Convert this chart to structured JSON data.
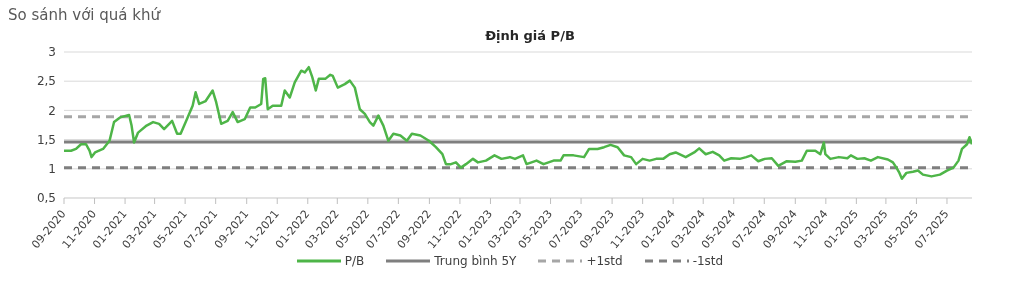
{
  "chart_data": {
    "type": "line",
    "subtitle": "So sánh với quá khứ",
    "title": "Định giá P/B",
    "series": [
      {
        "name": "P/B",
        "color": "#4eb548",
        "x": [
          "2020-09-01",
          "2020-09-15",
          "2020-09-25",
          "2020-10-05",
          "2020-10-15",
          "2020-10-22",
          "2020-10-26",
          "2020-11-02",
          "2020-11-18",
          "2020-12-01",
          "2020-12-10",
          "2020-12-22",
          "2021-01-09",
          "2021-01-14",
          "2021-01-19",
          "2021-01-27",
          "2021-02-13",
          "2021-02-26",
          "2021-03-10",
          "2021-03-20",
          "2021-04-05",
          "2021-04-15",
          "2021-04-22",
          "2021-05-06",
          "2021-05-16",
          "2021-05-22",
          "2021-05-29",
          "2021-06-11",
          "2021-06-25",
          "2021-07-02",
          "2021-07-12",
          "2021-07-25",
          "2021-08-04",
          "2021-08-14",
          "2021-08-28",
          "2021-09-08",
          "2021-09-18",
          "2021-09-30",
          "2021-10-04",
          "2021-10-08",
          "2021-10-13",
          "2021-10-23",
          "2021-11-09",
          "2021-11-16",
          "2021-11-26",
          "2021-12-06",
          "2021-12-19",
          "2021-12-26",
          "2022-01-03",
          "2022-01-10",
          "2022-01-17",
          "2022-01-23",
          "2022-02-05",
          "2022-02-15",
          "2022-02-20",
          "2022-03-02",
          "2022-03-16",
          "2022-03-26",
          "2022-04-05",
          "2022-04-15",
          "2022-04-25",
          "2022-05-05",
          "2022-05-12",
          "2022-05-22",
          "2022-06-01",
          "2022-06-11",
          "2022-06-21",
          "2022-07-05",
          "2022-07-18",
          "2022-07-28",
          "2022-08-14",
          "2022-08-31",
          "2022-09-14",
          "2022-09-27",
          "2022-10-04",
          "2022-10-14",
          "2022-10-24",
          "2022-11-03",
          "2022-11-13",
          "2022-11-27",
          "2022-12-07",
          "2022-12-23",
          "2023-01-09",
          "2023-01-23",
          "2023-02-09",
          "2023-02-19",
          "2023-03-07",
          "2023-03-14",
          "2023-04-03",
          "2023-04-17",
          "2023-05-07",
          "2023-05-21",
          "2023-05-27",
          "2023-06-16",
          "2023-07-07",
          "2023-07-17",
          "2023-08-03",
          "2023-08-16",
          "2023-08-29",
          "2023-09-12",
          "2023-09-25",
          "2023-10-09",
          "2023-10-19",
          "2023-11-01",
          "2023-11-15",
          "2023-11-28",
          "2023-12-12",
          "2023-12-25",
          "2024-01-06",
          "2024-01-26",
          "2024-02-12",
          "2024-02-22",
          "2024-03-06",
          "2024-03-20",
          "2024-04-02",
          "2024-04-12",
          "2024-04-26",
          "2024-05-13",
          "2024-05-26",
          "2024-06-05",
          "2024-06-19",
          "2024-07-02",
          "2024-07-16",
          "2024-07-29",
          "2024-08-15",
          "2024-09-01",
          "2024-09-14",
          "2024-09-24",
          "2024-10-11",
          "2024-10-21",
          "2024-10-28",
          "2024-10-31",
          "2024-11-10",
          "2024-11-27",
          "2024-12-14",
          "2024-12-21",
          "2025-01-03",
          "2025-01-17",
          "2025-01-30",
          "2025-02-13",
          "2025-03-05",
          "2025-03-15",
          "2025-03-22",
          "2025-03-28",
          "2025-04-02",
          "2025-04-11",
          "2025-04-24",
          "2025-05-04",
          "2025-05-14",
          "2025-05-31",
          "2025-06-17",
          "2025-07-01",
          "2025-07-14",
          "2025-07-24",
          "2025-07-31",
          "2025-08-10",
          "2025-08-15",
          "2025-08-20"
        ],
        "values": [
          1.31,
          1.31,
          1.34,
          1.42,
          1.42,
          1.31,
          1.2,
          1.28,
          1.34,
          1.48,
          1.8,
          1.88,
          1.92,
          1.74,
          1.45,
          1.62,
          1.74,
          1.8,
          1.77,
          1.68,
          1.82,
          1.6,
          1.6,
          1.88,
          2.08,
          2.31,
          2.11,
          2.16,
          2.34,
          2.14,
          1.77,
          1.82,
          1.97,
          1.8,
          1.85,
          2.05,
          2.05,
          2.11,
          2.54,
          2.55,
          2.02,
          2.08,
          2.08,
          2.34,
          2.22,
          2.48,
          2.68,
          2.65,
          2.74,
          2.57,
          2.34,
          2.54,
          2.54,
          2.61,
          2.59,
          2.39,
          2.45,
          2.51,
          2.39,
          2.02,
          1.94,
          1.8,
          1.74,
          1.91,
          1.74,
          1.48,
          1.6,
          1.57,
          1.48,
          1.6,
          1.57,
          1.48,
          1.37,
          1.25,
          1.08,
          1.08,
          1.11,
          1.02,
          1.08,
          1.17,
          1.11,
          1.14,
          1.23,
          1.17,
          1.2,
          1.17,
          1.23,
          1.08,
          1.14,
          1.08,
          1.14,
          1.14,
          1.23,
          1.23,
          1.2,
          1.34,
          1.34,
          1.37,
          1.41,
          1.37,
          1.23,
          1.2,
          1.08,
          1.17,
          1.14,
          1.17,
          1.17,
          1.25,
          1.28,
          1.2,
          1.28,
          1.35,
          1.25,
          1.29,
          1.23,
          1.14,
          1.18,
          1.17,
          1.2,
          1.23,
          1.13,
          1.17,
          1.18,
          1.05,
          1.13,
          1.12,
          1.14,
          1.31,
          1.31,
          1.25,
          1.45,
          1.25,
          1.17,
          1.2,
          1.18,
          1.23,
          1.17,
          1.18,
          1.14,
          1.2,
          1.16,
          1.11,
          1.02,
          0.93,
          0.83,
          0.93,
          0.95,
          0.97,
          0.9,
          0.87,
          0.9,
          0.97,
          1.02,
          1.14,
          1.34,
          1.42,
          1.54,
          1.42
        ]
      }
    ],
    "ref_lines": [
      {
        "axis": "y",
        "value": 1.46,
        "label": "Trung bình 5Y",
        "color": "#7f7f7f",
        "line_style": "solid"
      },
      {
        "axis": "y",
        "value": 1.89,
        "label": "+1std",
        "color": "#a6a6a6",
        "line_style": "dashed"
      },
      {
        "axis": "y",
        "value": 1.02,
        "label": "-1std",
        "color": "#7f7f7f",
        "line_style": "dashed"
      }
    ],
    "xlim": [
      "2020-09-01",
      "2025-08-20"
    ],
    "xticks": [
      {
        "value": "2020-09-01",
        "label": "09-2020"
      },
      {
        "value": "2020-11-01",
        "label": "11-2020"
      },
      {
        "value": "2021-01-01",
        "label": "01-2021"
      },
      {
        "value": "2021-03-01",
        "label": "03-2021"
      },
      {
        "value": "2021-05-01",
        "label": "05-2021"
      },
      {
        "value": "2021-07-01",
        "label": "07-2021"
      },
      {
        "value": "2021-09-01",
        "label": "09-2021"
      },
      {
        "value": "2021-11-01",
        "label": "11-2021"
      },
      {
        "value": "2022-01-01",
        "label": "01-2022"
      },
      {
        "value": "2022-03-01",
        "label": "03-2022"
      },
      {
        "value": "2022-05-01",
        "label": "05-2022"
      },
      {
        "value": "2022-07-01",
        "label": "07-2022"
      },
      {
        "value": "2022-09-01",
        "label": "09-2022"
      },
      {
        "value": "2022-11-01",
        "label": "11-2022"
      },
      {
        "value": "2023-01-01",
        "label": "01-2023"
      },
      {
        "value": "2023-03-01",
        "label": "03-2023"
      },
      {
        "value": "2023-05-01",
        "label": "05-2023"
      },
      {
        "value": "2023-07-01",
        "label": "07-2023"
      },
      {
        "value": "2023-09-01",
        "label": "09-2023"
      },
      {
        "value": "2023-11-01",
        "label": "11-2023"
      },
      {
        "value": "2024-01-01",
        "label": "01-2024"
      },
      {
        "value": "2024-03-01",
        "label": "03-2024"
      },
      {
        "value": "2024-05-01",
        "label": "05-2024"
      },
      {
        "value": "2024-07-01",
        "label": "07-2024"
      },
      {
        "value": "2024-09-01",
        "label": "09-2024"
      },
      {
        "value": "2024-11-01",
        "label": "11-2024"
      },
      {
        "value": "2025-01-01",
        "label": "01-2025"
      },
      {
        "value": "2025-03-01",
        "label": "03-2025"
      },
      {
        "value": "2025-05-01",
        "label": "05-2025"
      },
      {
        "value": "2025-07-01",
        "label": "07-2025"
      }
    ],
    "ylim": [
      0.5,
      3
    ],
    "yticks": [
      {
        "value": 0.5,
        "label": "0,5"
      },
      1,
      {
        "value": 1.5,
        "label": "1,5"
      },
      2,
      {
        "value": 2.5,
        "label": "2,5"
      },
      3
    ],
    "grid": "y",
    "legend": "bottom",
    "marker": "none",
    "line_style": "solid"
  }
}
